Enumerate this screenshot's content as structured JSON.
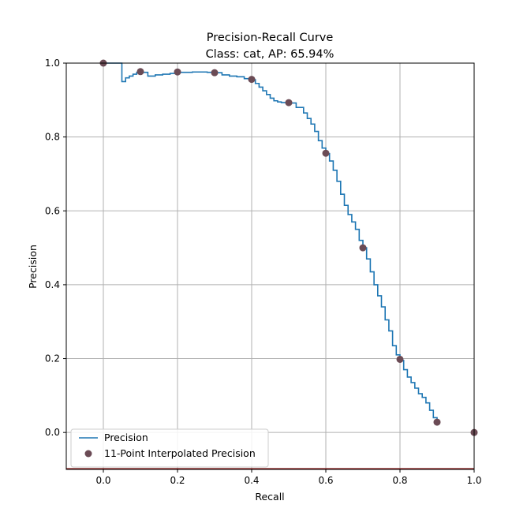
{
  "chart_data": {
    "type": "line",
    "title": "Precision-Recall Curve",
    "subtitle": "Class: cat, AP: 65.94%",
    "xlabel": "Recall",
    "ylabel": "Precision",
    "xlim": [
      -0.1,
      1.0
    ],
    "ylim": [
      -0.1,
      1.0
    ],
    "x_ticks": [
      "0.0",
      "0.2",
      "0.4",
      "0.6",
      "0.8",
      "1.0"
    ],
    "y_ticks": [
      "0.0",
      "0.2",
      "0.4",
      "0.6",
      "0.8",
      "1.0"
    ],
    "x_tick_values": [
      0.0,
      0.2,
      0.4,
      0.6,
      0.8,
      1.0
    ],
    "y_tick_values": [
      0.0,
      0.2,
      0.4,
      0.6,
      0.8,
      1.0
    ],
    "grid": true,
    "legend_position": "lower-left",
    "series": [
      {
        "name": "Precision",
        "type": "line",
        "color": "#1f77b4",
        "x": [
          0.0,
          0.005,
          0.01,
          0.02,
          0.03,
          0.04,
          0.048,
          0.05,
          0.06,
          0.07,
          0.08,
          0.09,
          0.1,
          0.12,
          0.14,
          0.16,
          0.18,
          0.2,
          0.22,
          0.24,
          0.26,
          0.28,
          0.3,
          0.32,
          0.34,
          0.36,
          0.38,
          0.4,
          0.41,
          0.42,
          0.43,
          0.44,
          0.45,
          0.46,
          0.47,
          0.48,
          0.5,
          0.52,
          0.54,
          0.55,
          0.56,
          0.57,
          0.58,
          0.59,
          0.6,
          0.61,
          0.62,
          0.63,
          0.64,
          0.65,
          0.66,
          0.67,
          0.68,
          0.69,
          0.7,
          0.71,
          0.72,
          0.73,
          0.74,
          0.75,
          0.76,
          0.77,
          0.78,
          0.79,
          0.8,
          0.81,
          0.82,
          0.83,
          0.84,
          0.85,
          0.86,
          0.87,
          0.88,
          0.89,
          0.9
        ],
        "y": [
          1.0,
          1.0,
          1.0,
          1.0,
          1.0,
          1.0,
          1.0,
          0.95,
          0.96,
          0.965,
          0.97,
          0.975,
          0.975,
          0.965,
          0.968,
          0.97,
          0.972,
          0.975,
          0.975,
          0.976,
          0.976,
          0.975,
          0.974,
          0.968,
          0.965,
          0.963,
          0.958,
          0.955,
          0.945,
          0.935,
          0.925,
          0.915,
          0.905,
          0.898,
          0.895,
          0.893,
          0.892,
          0.88,
          0.865,
          0.85,
          0.835,
          0.815,
          0.79,
          0.77,
          0.755,
          0.735,
          0.71,
          0.68,
          0.645,
          0.615,
          0.59,
          0.57,
          0.55,
          0.52,
          0.5,
          0.47,
          0.435,
          0.4,
          0.37,
          0.34,
          0.305,
          0.275,
          0.235,
          0.21,
          0.195,
          0.17,
          0.15,
          0.135,
          0.12,
          0.105,
          0.095,
          0.08,
          0.06,
          0.04,
          0.028
        ]
      },
      {
        "name": "11-Point Interpolated Precision",
        "type": "scatter",
        "color": "#6b4b55",
        "x": [
          0.0,
          0.1,
          0.2,
          0.3,
          0.4,
          0.5,
          0.6,
          0.7,
          0.8,
          0.9,
          1.0
        ],
        "y": [
          1.0,
          0.977,
          0.976,
          0.974,
          0.956,
          0.893,
          0.756,
          0.5,
          0.198,
          0.028,
          0.0
        ]
      }
    ],
    "colors": {
      "grid": "#b0b0b0",
      "axis": "#000000",
      "baseline": "#8b1a1a"
    }
  }
}
